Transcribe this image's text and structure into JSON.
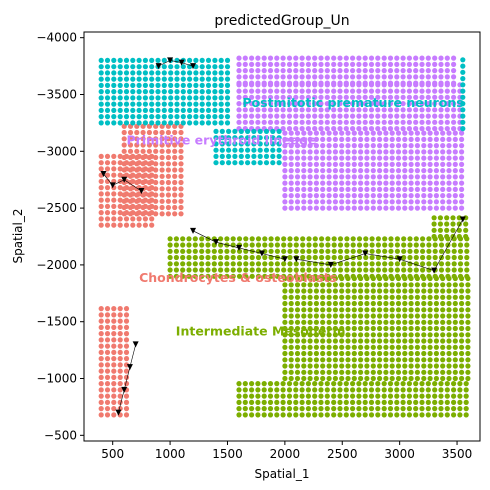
{
  "chart_data": {
    "type": "scatter",
    "title": "predictedGroup_Un",
    "xlabel": "Spatial_1",
    "ylabel": "Spatial_2",
    "xlim": [
      250,
      3700
    ],
    "ylim": [
      -4050,
      -450
    ],
    "xticks": [
      500,
      1000,
      1500,
      2000,
      2500,
      3000,
      3500
    ],
    "xtick_labels": [
      "500",
      "1000",
      "1500",
      "2000",
      "2500",
      "3000",
      "3500"
    ],
    "yticks": [
      -500,
      -1000,
      -1500,
      -2000,
      -2500,
      -3000,
      -3500,
      -4000
    ],
    "ytick_labels": [
      "−500",
      "−1000",
      "−1500",
      "−2000",
      "−2500",
      "−3000",
      "−3500",
      "−4000"
    ],
    "grid": false,
    "legend": "none",
    "colors": {
      "chondrocytes": "#f07a6f",
      "intermediate_mesoderm": "#7cae00",
      "primitive_erythroid": "#c77cff",
      "postmitotic_neurons": "#00bfc4",
      "arrow": "#000000"
    },
    "cluster_labels": [
      {
        "key": "intermediate_mesoderm",
        "text": "Intermediate Mesoderm",
        "x": 1050,
        "y": -1380
      },
      {
        "key": "chondrocytes",
        "text": "Chondrocytes & osteoblasts",
        "x": 730,
        "y": -1850
      },
      {
        "key": "primitive_erythroid",
        "text": "Primitive erythroid lineage",
        "x": 620,
        "y": -3060
      },
      {
        "key": "postmitotic_neurons",
        "text": "Postmitotic premature neurons",
        "x": 1630,
        "y": -3390
      }
    ],
    "regions": [
      {
        "cluster": "chondrocytes",
        "x": [
          400,
          650
        ],
        "y": [
          -680,
          -1640
        ]
      },
      {
        "cluster": "chondrocytes",
        "x": [
          400,
          850
        ],
        "y": [
          -2350,
          -3000
        ]
      },
      {
        "cluster": "chondrocytes",
        "x": [
          600,
          1100
        ],
        "y": [
          -2450,
          -3250
        ]
      },
      {
        "cluster": "intermediate_mesoderm",
        "x": [
          1600,
          3600
        ],
        "y": [
          -680,
          -1000
        ]
      },
      {
        "cluster": "intermediate_mesoderm",
        "x": [
          2000,
          3600
        ],
        "y": [
          -1000,
          -1900
        ]
      },
      {
        "cluster": "intermediate_mesoderm",
        "x": [
          1000,
          3600
        ],
        "y": [
          -1900,
          -2250
        ]
      },
      {
        "cluster": "intermediate_mesoderm",
        "x": [
          3300,
          3600
        ],
        "y": [
          -2250,
          -2450
        ]
      },
      {
        "cluster": "primitive_erythroid",
        "x": [
          2000,
          3550
        ],
        "y": [
          -2500,
          -3200
        ]
      },
      {
        "cluster": "primitive_erythroid",
        "x": [
          1600,
          3550
        ],
        "y": [
          -3200,
          -3600
        ]
      },
      {
        "cluster": "primitive_erythroid",
        "x": [
          1600,
          3500
        ],
        "y": [
          -3600,
          -3850
        ]
      },
      {
        "cluster": "postmitotic_neurons",
        "x": [
          400,
          1550
        ],
        "y": [
          -3250,
          -3850
        ]
      },
      {
        "cluster": "postmitotic_neurons",
        "x": [
          1400,
          2000
        ],
        "y": [
          -2900,
          -3200
        ]
      },
      {
        "cluster": "postmitotic_neurons",
        "x": [
          3550,
          3600
        ],
        "y": [
          -3200,
          -3850
        ]
      }
    ],
    "arrow_chains": [
      {
        "x": [
          550,
          600,
          650,
          700
        ],
        "y": [
          -700,
          -900,
          -1100,
          -1300
        ]
      },
      {
        "x": [
          420,
          500,
          600,
          750
        ],
        "y": [
          -2800,
          -2700,
          -2750,
          -2650
        ]
      },
      {
        "x": [
          1200,
          1400,
          1600,
          1800,
          2000
        ],
        "y": [
          -2300,
          -2200,
          -2150,
          -2100,
          -2050
        ]
      },
      {
        "x": [
          2100,
          2400,
          2700,
          3000,
          3300,
          3550
        ],
        "y": [
          -2050,
          -2000,
          -2100,
          -2050,
          -1950,
          -2400
        ]
      },
      {
        "x": [
          900,
          1000,
          1100,
          1200
        ],
        "y": [
          -3750,
          -3800,
          -3780,
          -3750
        ]
      }
    ]
  }
}
